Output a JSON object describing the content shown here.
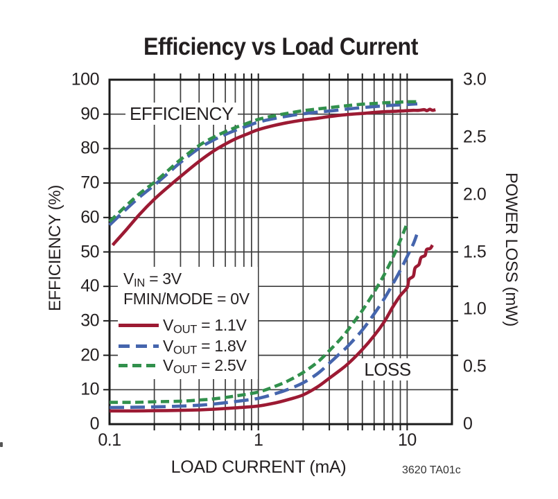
{
  "title": "Efficiency vs Load Current",
  "footnote": "3620 TA01c",
  "annotations": {
    "efficiency_label": "EFFICIENCY",
    "loss_label": "LOSS"
  },
  "legend": {
    "condition1": {
      "v": "V",
      "sub": "IN",
      "rest": " = 3V"
    },
    "condition2": "FMIN/MODE = 0V",
    "entries": [
      {
        "v": "V",
        "sub": "OUT",
        "rest": " = 1.1V",
        "color": "#9c1a33",
        "line_style": "solid"
      },
      {
        "v": "V",
        "sub": "OUT",
        "rest": " = 1.8V",
        "color": "#4565ad",
        "line_style": "long-dash"
      },
      {
        "v": "V",
        "sub": "OUT",
        "rest": " = 2.5V",
        "color": "#31904c",
        "line_style": "short-dash"
      }
    ]
  },
  "colors": {
    "red_series": "#9c1a33",
    "blue_series": "#4565ad",
    "green_series": "#31904c",
    "grid": "#3d3d3d",
    "border": "#1a1a1a",
    "text": "#231f20"
  },
  "chart_data": {
    "type": "line",
    "title": "Efficiency vs Load Current",
    "grid": "on",
    "legend_position": "inside-left-middle",
    "x_axis": {
      "label": "LOAD CURRENT (mA)",
      "scale": "log",
      "min": 0.1,
      "max": 20,
      "tick_values": [
        0.1,
        1,
        10
      ],
      "tick_labels": [
        "0.1",
        "1",
        "10"
      ]
    },
    "y_left_axis": {
      "label": "EFFICIENCY (%)",
      "min": 0,
      "max": 100,
      "tick_values": [
        100,
        90,
        80,
        70,
        60,
        50,
        40,
        30,
        20,
        10,
        0
      ],
      "tick_labels": [
        "100",
        "90",
        "80",
        "70",
        "60",
        "50",
        "40",
        "30",
        "20",
        "10",
        "0"
      ],
      "gridline_step": 10
    },
    "y_right_axis": {
      "label": "POWER LOSS (mW)",
      "min": 0,
      "max": 3.0,
      "tick_values": [
        3.0,
        2.5,
        2.0,
        1.5,
        1.0,
        0.5,
        0
      ],
      "tick_labels": [
        "3.0",
        "2.5",
        "2.0",
        "1.5",
        "1.0",
        "0.5",
        "0"
      ]
    },
    "conditions": [
      "VIN = 3V",
      "FMIN/MODE = 0V"
    ],
    "series": [
      {
        "name": "VOUT = 1.1V",
        "group": "efficiency",
        "axis": "left",
        "color": "#9c1a33",
        "line_style": "solid",
        "points": [
          [
            0.105,
            52
          ],
          [
            0.13,
            56.5
          ],
          [
            0.16,
            61
          ],
          [
            0.2,
            65.3
          ],
          [
            0.25,
            69
          ],
          [
            0.3,
            71.9
          ],
          [
            0.4,
            76.3
          ],
          [
            0.5,
            79.3
          ],
          [
            0.6,
            81.3
          ],
          [
            0.7,
            82.8
          ],
          [
            0.85,
            84.3
          ],
          [
            1,
            85.5
          ],
          [
            1.3,
            86.8
          ],
          [
            1.6,
            87.6
          ],
          [
            2,
            88.3
          ],
          [
            2.5,
            88.8
          ],
          [
            3,
            89.3
          ],
          [
            4,
            89.9
          ],
          [
            5,
            90.2
          ],
          [
            6,
            90.5
          ],
          [
            7,
            90.7
          ],
          [
            8,
            90.8
          ],
          [
            9,
            90.9
          ],
          [
            10,
            91
          ],
          [
            11,
            91.1
          ],
          [
            12,
            91.1
          ],
          [
            13,
            91.3
          ],
          [
            13.6,
            91
          ],
          [
            14.2,
            91.4
          ],
          [
            14.8,
            91.1
          ],
          [
            15.5,
            91.3
          ]
        ]
      },
      {
        "name": "VOUT = 1.8V",
        "group": "efficiency",
        "axis": "left",
        "color": "#4565ad",
        "line_style": "long-dash",
        "points": [
          [
            0.1,
            57.8
          ],
          [
            0.13,
            62.5
          ],
          [
            0.16,
            66
          ],
          [
            0.2,
            69.4
          ],
          [
            0.25,
            73
          ],
          [
            0.3,
            76
          ],
          [
            0.4,
            80.1
          ],
          [
            0.5,
            82.5
          ],
          [
            0.6,
            84.1
          ],
          [
            0.7,
            85.3
          ],
          [
            0.85,
            86.6
          ],
          [
            1,
            87.7
          ],
          [
            1.3,
            88.8
          ],
          [
            1.6,
            89.5
          ],
          [
            2,
            90.1
          ],
          [
            2.5,
            90.6
          ],
          [
            3,
            90.9
          ],
          [
            4,
            91.5
          ],
          [
            5,
            91.9
          ],
          [
            6,
            92.2
          ],
          [
            7,
            92.4
          ],
          [
            8,
            92.6
          ],
          [
            9,
            92.7
          ],
          [
            10,
            92.8
          ],
          [
            11.7,
            93
          ]
        ]
      },
      {
        "name": "VOUT = 2.5V",
        "group": "efficiency",
        "axis": "left",
        "color": "#31904c",
        "line_style": "short-dash",
        "points": [
          [
            0.1,
            58.8
          ],
          [
            0.13,
            63.5
          ],
          [
            0.16,
            67
          ],
          [
            0.2,
            70.2
          ],
          [
            0.25,
            73.8
          ],
          [
            0.3,
            76.8
          ],
          [
            0.4,
            80.9
          ],
          [
            0.5,
            83.3
          ],
          [
            0.6,
            84.9
          ],
          [
            0.7,
            86.1
          ],
          [
            0.85,
            87.4
          ],
          [
            1,
            88.5
          ],
          [
            1.3,
            89.6
          ],
          [
            1.6,
            90.3
          ],
          [
            2,
            91
          ],
          [
            2.5,
            91.5
          ],
          [
            3,
            91.9
          ],
          [
            4,
            92.5
          ],
          [
            5,
            92.9
          ],
          [
            6,
            93.1
          ],
          [
            7,
            93.3
          ],
          [
            8,
            93.4
          ],
          [
            9,
            93.5
          ],
          [
            10,
            93.6
          ],
          [
            11.5,
            93.6
          ]
        ]
      },
      {
        "name": "VOUT = 1.1V",
        "group": "power_loss",
        "axis": "right",
        "color": "#9c1a33",
        "line_style": "solid",
        "points": [
          [
            0.1,
            0.115
          ],
          [
            0.15,
            0.115
          ],
          [
            0.2,
            0.117
          ],
          [
            0.3,
            0.12
          ],
          [
            0.4,
            0.124
          ],
          [
            0.5,
            0.13
          ],
          [
            0.7,
            0.142
          ],
          [
            1,
            0.158
          ],
          [
            1.3,
            0.185
          ],
          [
            1.6,
            0.215
          ],
          [
            2,
            0.255
          ],
          [
            2.5,
            0.325
          ],
          [
            3,
            0.4
          ],
          [
            3.5,
            0.465
          ],
          [
            4,
            0.525
          ],
          [
            5,
            0.65
          ],
          [
            6,
            0.77
          ],
          [
            7,
            0.89
          ],
          [
            8,
            1.02
          ],
          [
            9,
            1.12
          ],
          [
            10,
            1.19
          ],
          [
            10.3,
            1.26
          ],
          [
            11,
            1.29
          ],
          [
            11.3,
            1.36
          ],
          [
            12,
            1.39
          ],
          [
            12.4,
            1.45
          ],
          [
            13.2,
            1.47
          ],
          [
            13.5,
            1.52
          ],
          [
            14.3,
            1.53
          ],
          [
            14.8,
            1.56
          ]
        ]
      },
      {
        "name": "VOUT = 1.8V",
        "group": "power_loss",
        "axis": "right",
        "color": "#4565ad",
        "line_style": "long-dash",
        "points": [
          [
            0.1,
            0.145
          ],
          [
            0.15,
            0.147
          ],
          [
            0.2,
            0.15
          ],
          [
            0.3,
            0.157
          ],
          [
            0.4,
            0.165
          ],
          [
            0.5,
            0.175
          ],
          [
            0.7,
            0.197
          ],
          [
            1,
            0.225
          ],
          [
            1.3,
            0.265
          ],
          [
            1.6,
            0.305
          ],
          [
            2,
            0.36
          ],
          [
            2.5,
            0.44
          ],
          [
            3,
            0.53
          ],
          [
            3.5,
            0.61
          ],
          [
            4,
            0.68
          ],
          [
            5,
            0.82
          ],
          [
            6,
            0.96
          ],
          [
            7,
            1.09
          ],
          [
            8,
            1.22
          ],
          [
            9,
            1.34
          ],
          [
            10,
            1.46
          ],
          [
            11,
            1.57
          ],
          [
            11.6,
            1.65
          ]
        ]
      },
      {
        "name": "VOUT = 2.5V",
        "group": "power_loss",
        "axis": "right",
        "color": "#31904c",
        "line_style": "short-dash",
        "points": [
          [
            0.1,
            0.19
          ],
          [
            0.15,
            0.19
          ],
          [
            0.2,
            0.195
          ],
          [
            0.3,
            0.2
          ],
          [
            0.4,
            0.21
          ],
          [
            0.5,
            0.22
          ],
          [
            0.7,
            0.245
          ],
          [
            1,
            0.28
          ],
          [
            1.3,
            0.33
          ],
          [
            1.6,
            0.38
          ],
          [
            2,
            0.45
          ],
          [
            2.5,
            0.54
          ],
          [
            3,
            0.64
          ],
          [
            3.5,
            0.73
          ],
          [
            4,
            0.82
          ],
          [
            5,
            0.99
          ],
          [
            6,
            1.15
          ],
          [
            7,
            1.3
          ],
          [
            8,
            1.45
          ],
          [
            9,
            1.6
          ],
          [
            10,
            1.75
          ]
        ]
      }
    ]
  }
}
